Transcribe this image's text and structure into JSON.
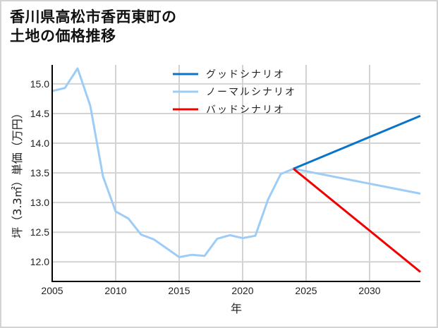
{
  "title": {
    "line1": "香川県高松市香西東町の",
    "line2": "土地の価格推移"
  },
  "colors": {
    "good": "#0a74c9",
    "normal": "#9dcdf7",
    "bad": "#f20000",
    "grid": "#d3d3d3",
    "axis": "#000000"
  },
  "chart_data": {
    "type": "line",
    "title": "香川県高松市香西東町の土地の価格推移",
    "xlabel": "年",
    "ylabel": "坪（3.3㎡）単価（万円）",
    "xlim": [
      2005,
      2034
    ],
    "ylim": [
      11.67,
      15.32
    ],
    "xticks": [
      2005,
      2010,
      2015,
      2020,
      2025,
      2030
    ],
    "yticks": [
      12.0,
      12.5,
      13.0,
      13.5,
      14.0,
      14.5,
      15.0
    ],
    "grid": true,
    "legend_position": "upper center",
    "series": [
      {
        "name": "グッドシナリオ",
        "color": "#0a74c9",
        "x": [
          2024,
          2034
        ],
        "y": [
          13.57,
          14.46
        ]
      },
      {
        "name": "ノーマルシナリオ",
        "color": "#9dcdf7",
        "x": [
          2005,
          2006,
          2007,
          2008,
          2009,
          2010,
          2011,
          2012,
          2013,
          2014,
          2015,
          2016,
          2017,
          2018,
          2019,
          2020,
          2021,
          2022,
          2023,
          2024,
          2034
        ],
        "y": [
          14.88,
          14.93,
          15.26,
          14.63,
          13.44,
          12.85,
          12.73,
          12.46,
          12.38,
          12.23,
          12.08,
          12.12,
          12.1,
          12.39,
          12.45,
          12.4,
          12.44,
          13.05,
          13.48,
          13.57,
          13.15
        ]
      },
      {
        "name": "バッドシナリオ",
        "color": "#f20000",
        "x": [
          2024,
          2034
        ],
        "y": [
          13.57,
          11.83
        ]
      }
    ]
  },
  "legend": {
    "items": [
      {
        "label": "グッドシナリオ",
        "color": "#0a74c9"
      },
      {
        "label": "ノーマルシナリオ",
        "color": "#9dcdf7"
      },
      {
        "label": "バッドシナリオ",
        "color": "#f20000"
      }
    ]
  }
}
